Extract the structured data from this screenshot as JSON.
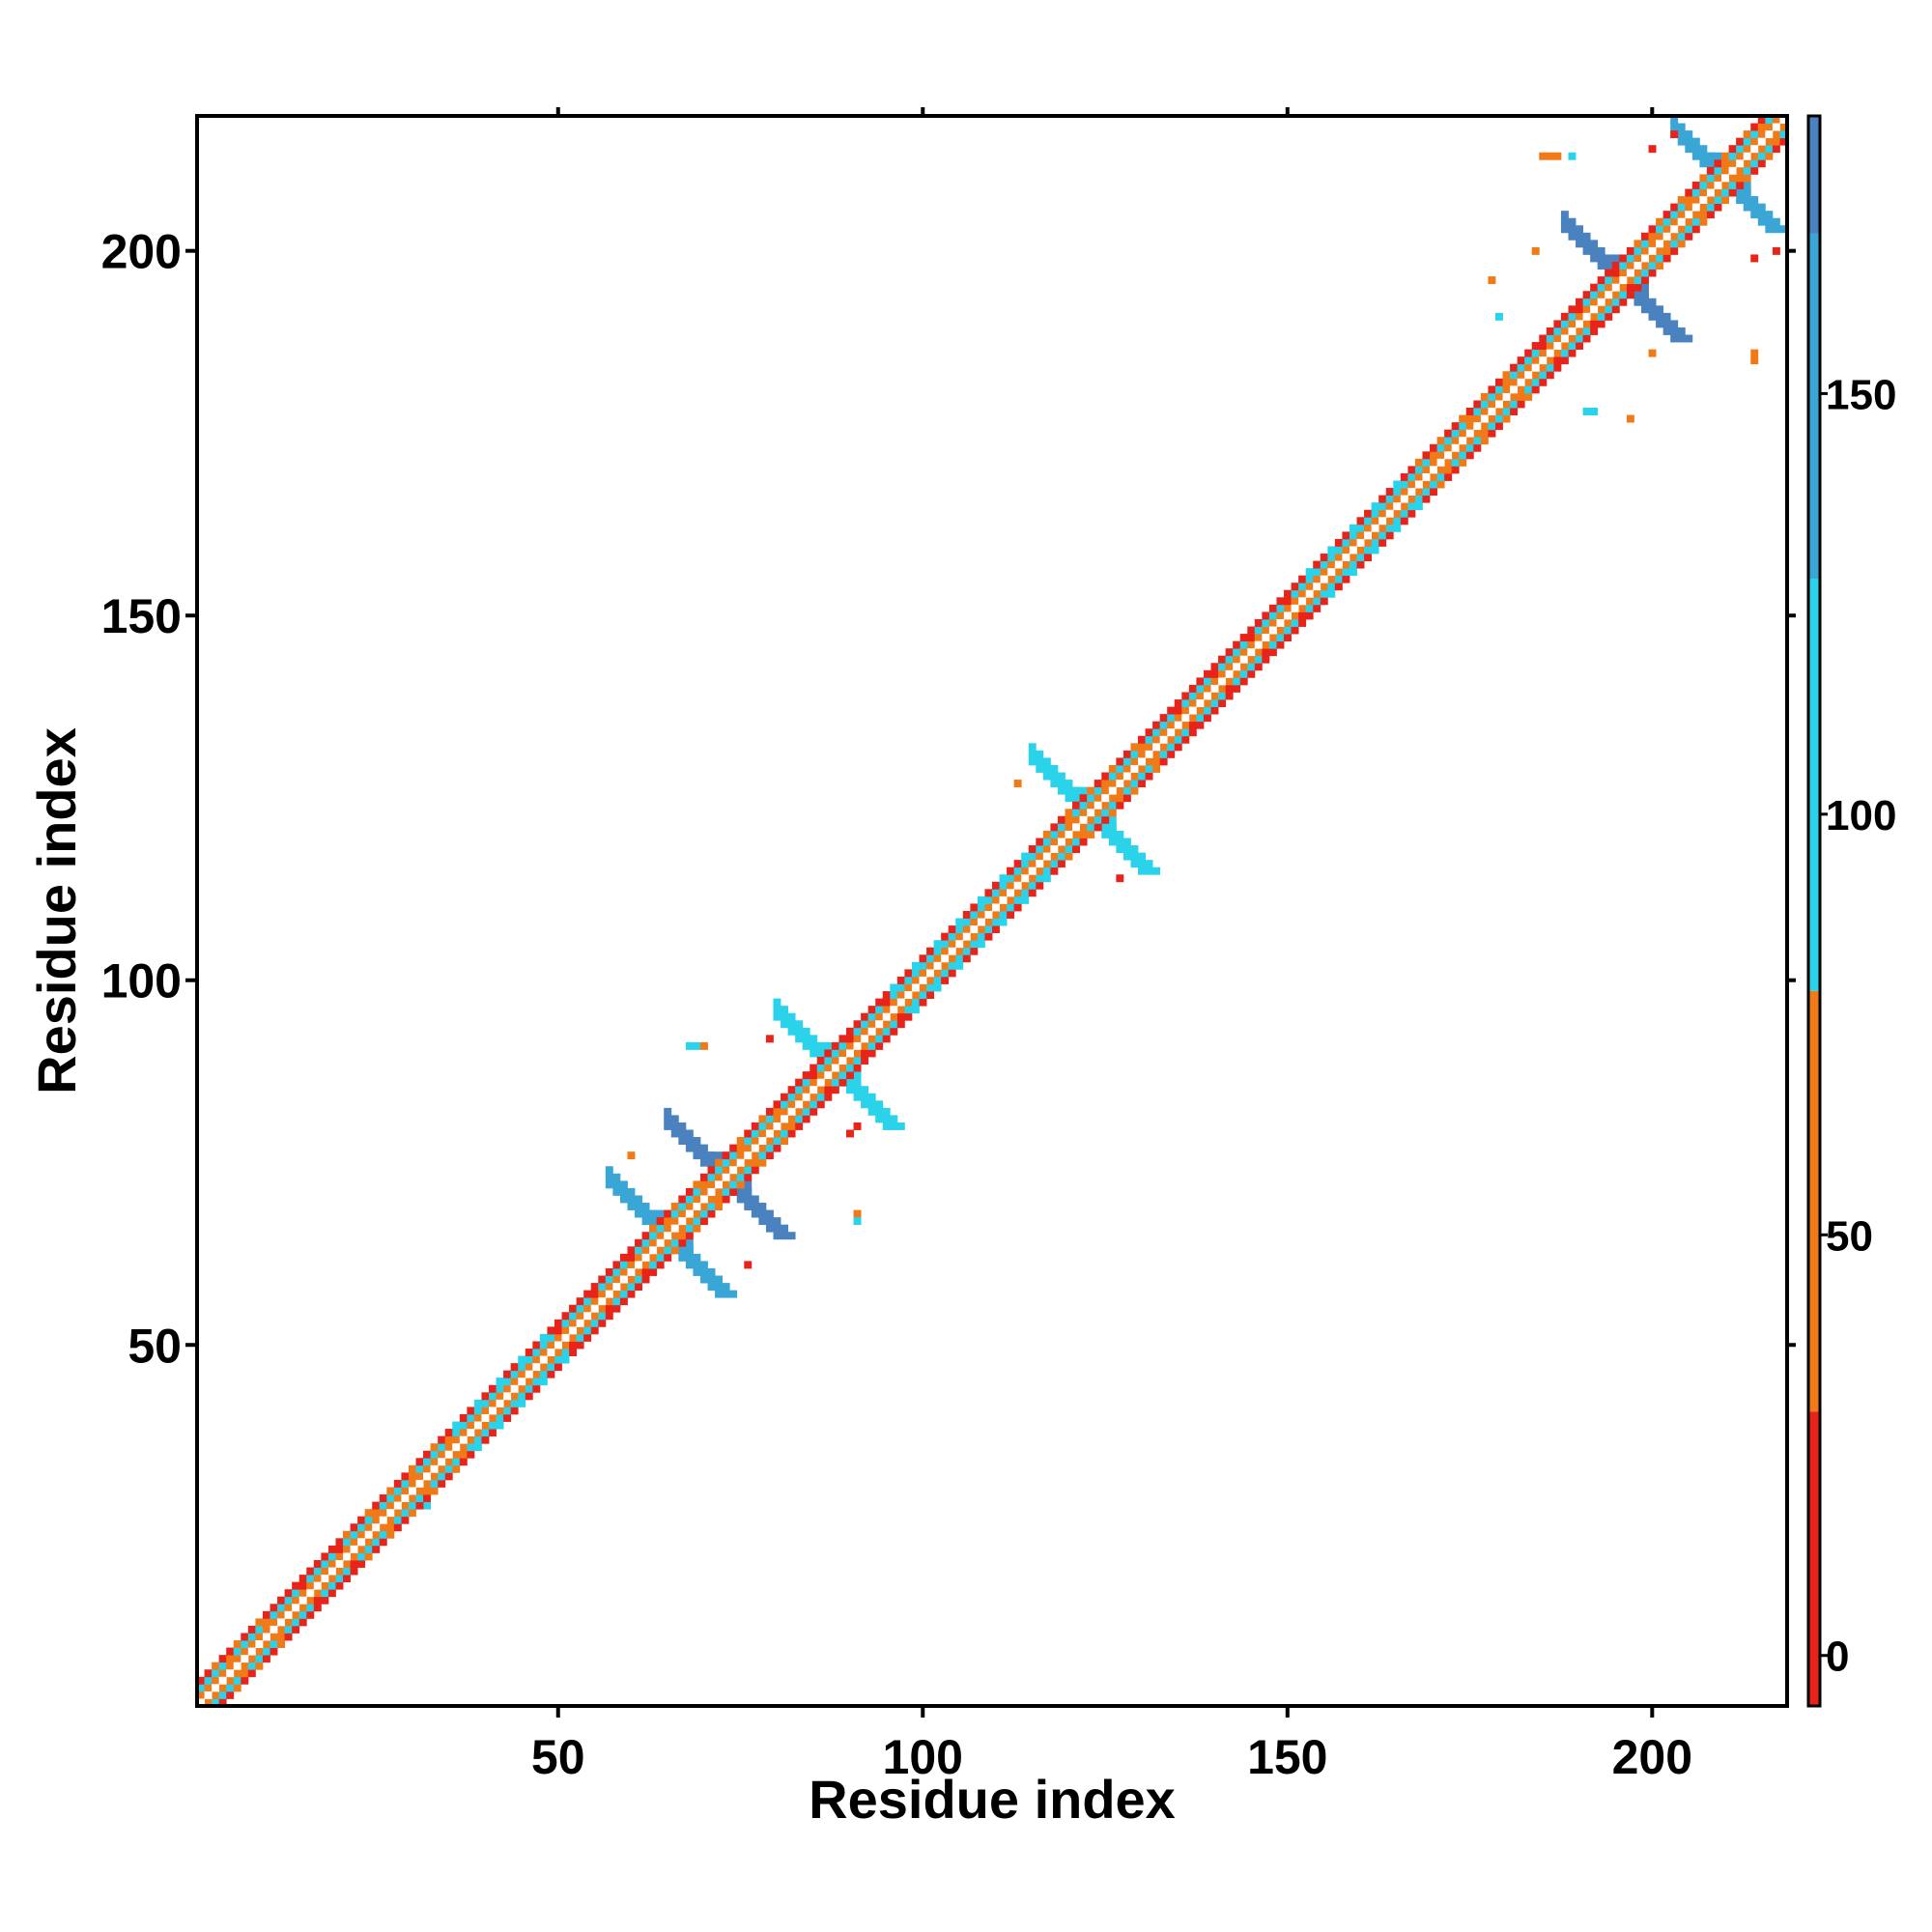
{
  "chart_data": {
    "type": "heatmap",
    "title": "",
    "xlabel": "Residue index",
    "ylabel": "Residue index",
    "xlim": [
      1,
      218
    ],
    "ylim": [
      1,
      218
    ],
    "x_ticks": [
      50,
      100,
      150,
      200
    ],
    "y_ticks": [
      50,
      100,
      150,
      200
    ],
    "colorbar": {
      "range": [
        -6,
        183
      ],
      "ticks": [
        0,
        50,
        100,
        150
      ],
      "bands": [
        {
          "from": -6,
          "to": 29,
          "color": "#e8241a"
        },
        {
          "from": 29,
          "to": 79,
          "color": "#f07a18"
        },
        {
          "from": 79,
          "to": 128,
          "color": "#2ad3ea"
        },
        {
          "from": 128,
          "to": 169,
          "color": "#3aa6d6"
        },
        {
          "from": 169,
          "to": 183,
          "color": "#4a82c0"
        }
      ]
    },
    "diagonal": {
      "start": 1,
      "end": 218,
      "self_color": "#ffffff",
      "near_pattern": [
        {
          "offset": 1,
          "color": "#f07a18"
        },
        {
          "offset": 2,
          "color": "#2ad3ea"
        },
        {
          "offset": 3,
          "color": "#e8241a"
        }
      ]
    },
    "segments": [
      {
        "from": 1,
        "to": 10,
        "color": "#f07a18"
      },
      {
        "from": 10,
        "to": 20,
        "color": "#e8241a"
      },
      {
        "from": 20,
        "to": 35,
        "color": "#f07a18"
      },
      {
        "from": 35,
        "to": 48,
        "color": "#2ad3ea"
      },
      {
        "from": 48,
        "to": 62,
        "color": "#e8241a"
      },
      {
        "from": 62,
        "to": 80,
        "color": "#f07a18"
      },
      {
        "from": 80,
        "to": 95,
        "color": "#e8241a"
      },
      {
        "from": 95,
        "to": 115,
        "color": "#2ad3ea"
      },
      {
        "from": 115,
        "to": 130,
        "color": "#f07a18"
      },
      {
        "from": 130,
        "to": 150,
        "color": "#e8241a"
      },
      {
        "from": 150,
        "to": 165,
        "color": "#2ad3ea"
      },
      {
        "from": 165,
        "to": 180,
        "color": "#f07a18"
      },
      {
        "from": 180,
        "to": 195,
        "color": "#e8241a"
      },
      {
        "from": 195,
        "to": 218,
        "color": "#f07a18"
      }
    ],
    "hairpins": [
      {
        "center": 65,
        "arm": 8,
        "color": "#3aa6d6"
      },
      {
        "center": 73,
        "arm": 8,
        "color": "#4a82c0"
      },
      {
        "center": 88,
        "arm": 8,
        "color": "#2ad3ea"
      },
      {
        "center": 123,
        "arm": 8,
        "color": "#2ad3ea"
      },
      {
        "center": 196,
        "arm": 8,
        "color": "#4a82c0"
      },
      {
        "center": 210,
        "arm": 7,
        "color": "#3aa6d6"
      }
    ],
    "blobs": [
      {
        "x": 38,
        "y": 38,
        "size": 4,
        "color": "#3aa6d6"
      },
      {
        "x": 43,
        "y": 44,
        "size": 4,
        "color": "#2ad3ea"
      },
      {
        "x": 31,
        "y": 29,
        "size": 3,
        "color": "#2ad3ea"
      }
    ],
    "scatter": [
      {
        "x": 185,
        "y": 213,
        "color": "#f07a18"
      },
      {
        "x": 186,
        "y": 213,
        "color": "#f07a18"
      },
      {
        "x": 187,
        "y": 213,
        "color": "#f07a18"
      },
      {
        "x": 189,
        "y": 213,
        "color": "#2ad3ea"
      },
      {
        "x": 178,
        "y": 196,
        "color": "#f07a18"
      },
      {
        "x": 179,
        "y": 191,
        "color": "#2ad3ea"
      },
      {
        "x": 184,
        "y": 200,
        "color": "#f07a18"
      },
      {
        "x": 200,
        "y": 186,
        "color": "#f07a18"
      },
      {
        "x": 191,
        "y": 178,
        "color": "#2ad3ea"
      },
      {
        "x": 192,
        "y": 178,
        "color": "#2ad3ea"
      },
      {
        "x": 197,
        "y": 177,
        "color": "#f07a18"
      },
      {
        "x": 214,
        "y": 186,
        "color": "#f07a18"
      },
      {
        "x": 214,
        "y": 185,
        "color": "#f07a18"
      },
      {
        "x": 214,
        "y": 199,
        "color": "#e8241a"
      },
      {
        "x": 217,
        "y": 200,
        "color": "#e8241a"
      },
      {
        "x": 200,
        "y": 214,
        "color": "#e8241a"
      },
      {
        "x": 203,
        "y": 216,
        "color": "#e8241a"
      },
      {
        "x": 68,
        "y": 91,
        "color": "#2ad3ea"
      },
      {
        "x": 69,
        "y": 91,
        "color": "#2ad3ea"
      },
      {
        "x": 70,
        "y": 91,
        "color": "#f07a18"
      },
      {
        "x": 91,
        "y": 68,
        "color": "#f07a18"
      },
      {
        "x": 91,
        "y": 67,
        "color": "#2ad3ea"
      },
      {
        "x": 60,
        "y": 76,
        "color": "#f07a18"
      },
      {
        "x": 76,
        "y": 61,
        "color": "#e8241a"
      },
      {
        "x": 113,
        "y": 127,
        "color": "#f07a18"
      },
      {
        "x": 127,
        "y": 114,
        "color": "#e8241a"
      },
      {
        "x": 90,
        "y": 79,
        "color": "#e8241a"
      },
      {
        "x": 91,
        "y": 80,
        "color": "#e8241a"
      },
      {
        "x": 79,
        "y": 92,
        "color": "#e8241a"
      }
    ]
  }
}
